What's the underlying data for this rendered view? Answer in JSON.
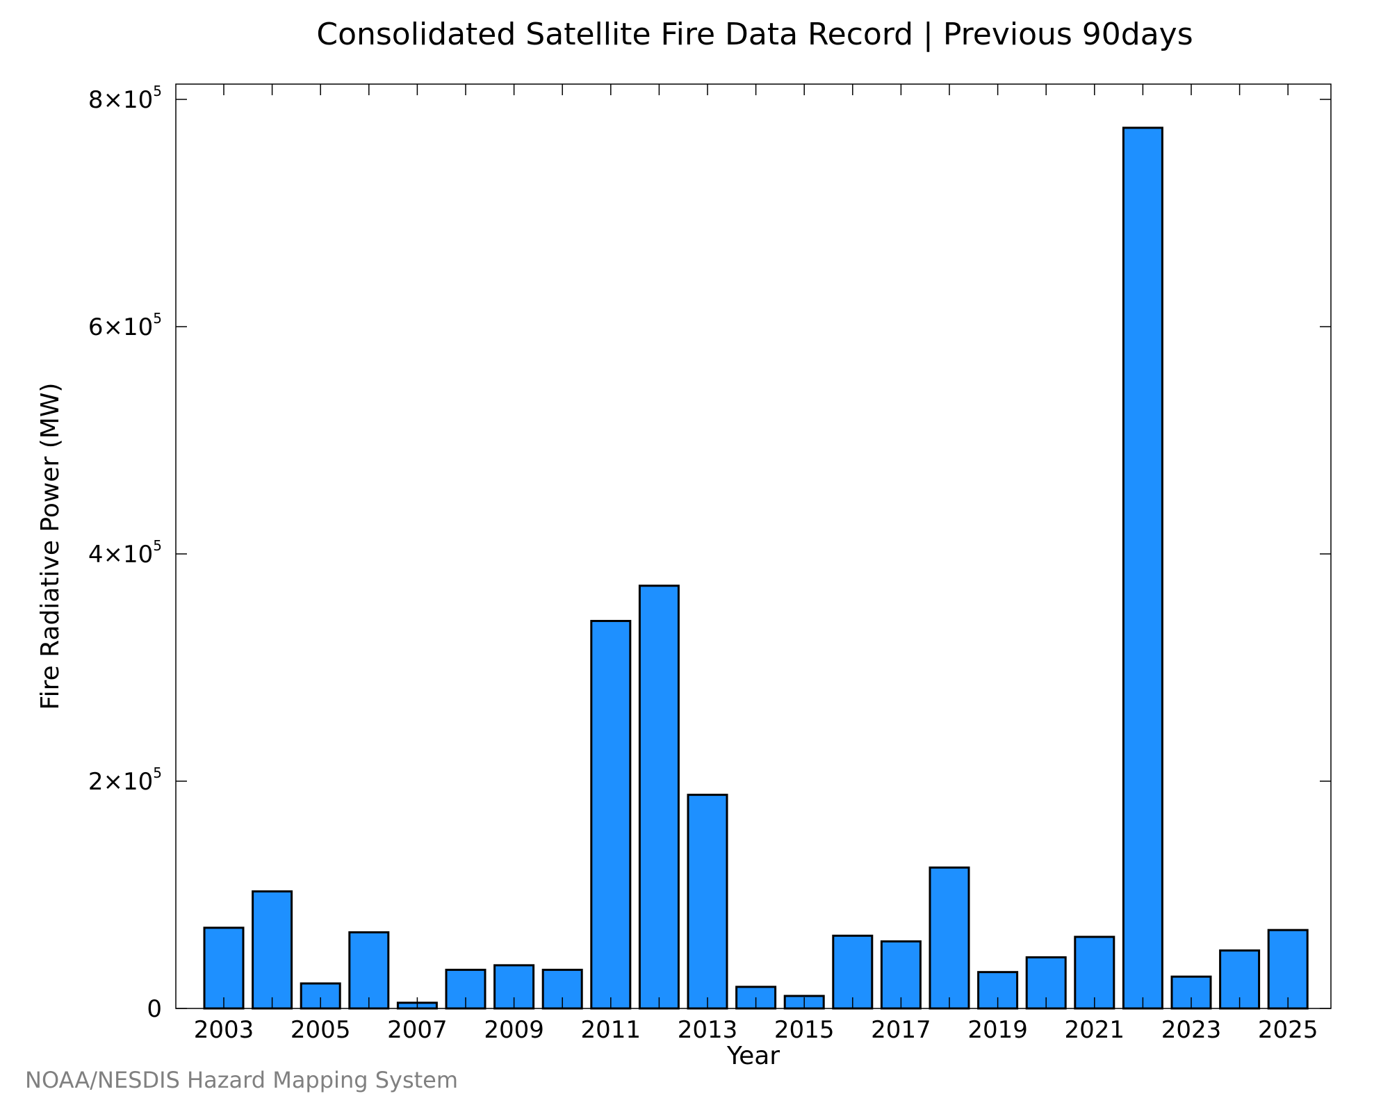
{
  "footer": {
    "credit": "NOAA/NESDIS Hazard Mapping System"
  },
  "colors": {
    "bar_fill": "#1E90FF",
    "bar_stroke": "#000000",
    "axis": "#000000",
    "credit_text": "#808080"
  },
  "chart_data": {
    "type": "bar",
    "title": "Consolidated Satellite Fire Data Record | Previous 90days",
    "xlabel": "Year",
    "ylabel": "Fire Radiative Power (MW)",
    "ylim": [
      0,
      800000
    ],
    "yticks": [
      {
        "value": 0,
        "mantissa": "0",
        "exponent": ""
      },
      {
        "value": 200000,
        "mantissa": "2×10",
        "exponent": "5"
      },
      {
        "value": 400000,
        "mantissa": "4×10",
        "exponent": "5"
      },
      {
        "value": 600000,
        "mantissa": "6×10",
        "exponent": "5"
      },
      {
        "value": 800000,
        "mantissa": "8×10",
        "exponent": "5"
      }
    ],
    "xtick_labels": [
      "2003",
      "2005",
      "2007",
      "2009",
      "2011",
      "2013",
      "2015",
      "2017",
      "2019",
      "2021",
      "2023",
      "2025"
    ],
    "categories": [
      "2003",
      "2004",
      "2005",
      "2006",
      "2007",
      "2008",
      "2009",
      "2010",
      "2011",
      "2012",
      "2013",
      "2014",
      "2015",
      "2016",
      "2017",
      "2018",
      "2019",
      "2020",
      "2021",
      "2022",
      "2023",
      "2024",
      "2025"
    ],
    "values": [
      71000,
      103000,
      22000,
      67000,
      5000,
      34000,
      38000,
      34000,
      341000,
      372000,
      188000,
      19000,
      11000,
      64000,
      59000,
      124000,
      32000,
      45000,
      63000,
      775000,
      28000,
      51000,
      69000
    ],
    "grid": false,
    "legend": "none"
  }
}
